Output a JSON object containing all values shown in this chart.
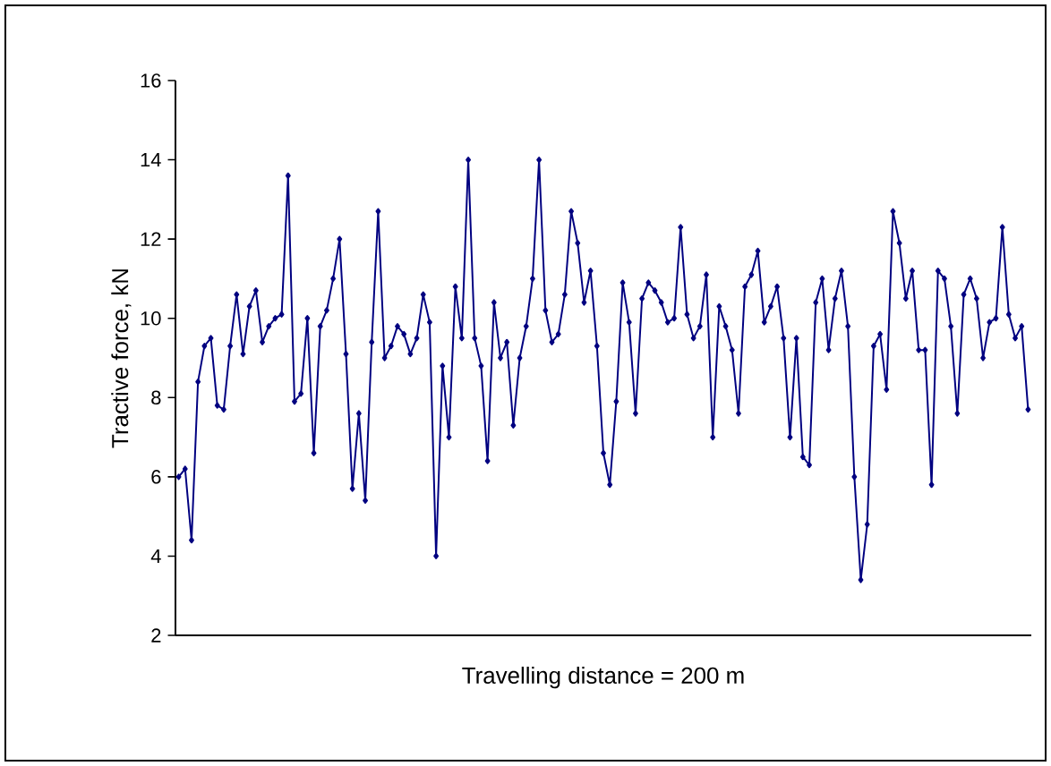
{
  "chart_data": {
    "type": "line",
    "xlabel": "Travelling distance = 200 m",
    "ylabel": "Tractive force, kN",
    "categories": [
      null,
      null,
      null,
      null,
      null,
      null,
      null,
      null,
      null,
      null,
      null,
      null,
      null,
      null,
      null,
      null,
      null,
      null,
      null,
      null,
      null,
      null,
      null,
      null,
      null,
      null,
      null,
      null,
      null,
      null,
      null,
      null,
      null,
      null,
      null,
      null,
      null,
      null,
      null,
      null,
      null,
      null,
      null,
      null,
      null,
      null,
      null,
      null,
      null,
      null,
      null,
      null,
      null,
      null,
      null,
      null,
      null,
      null,
      null,
      null,
      null,
      null,
      null,
      null,
      null,
      null,
      null,
      null,
      null,
      null,
      null,
      null,
      null,
      null,
      null,
      null,
      null,
      null,
      null,
      null,
      null,
      null,
      null,
      null,
      null,
      null,
      null,
      null,
      null,
      null,
      null,
      null,
      null,
      null,
      null,
      null,
      null,
      null,
      null,
      null,
      null,
      null,
      null,
      null,
      null,
      null,
      null,
      null,
      null,
      null,
      null,
      null,
      null,
      null,
      null,
      null,
      null,
      null,
      null,
      null,
      null,
      null,
      null,
      null,
      null,
      null,
      null,
      null,
      null,
      null,
      null,
      null,
      null
    ],
    "series": [
      {
        "color": "#000080",
        "values": [
          6.0,
          6.2,
          4.4,
          8.4,
          9.3,
          9.5,
          7.8,
          7.7,
          9.3,
          10.6,
          9.1,
          10.3,
          10.7,
          9.4,
          9.8,
          10.0,
          10.1,
          13.6,
          7.9,
          8.1,
          10.0,
          6.6,
          9.8,
          10.2,
          11.0,
          12.0,
          9.1,
          5.7,
          7.6,
          5.4,
          9.4,
          12.7,
          9.0,
          9.3,
          9.8,
          9.6,
          9.1,
          9.5,
          10.6,
          9.9,
          4.0,
          8.8,
          7.0,
          10.8,
          9.5,
          14.0,
          9.5,
          8.8,
          6.4,
          10.4,
          9.0,
          9.4,
          7.3,
          9.0,
          9.8,
          11.0,
          14.0,
          10.2,
          9.4,
          9.6,
          10.6,
          12.7,
          11.9,
          10.4,
          11.2,
          9.3,
          6.6,
          5.8,
          7.9,
          10.9,
          9.9,
          7.6,
          10.5,
          10.9,
          10.7,
          10.4,
          9.9,
          10.0,
          12.3,
          10.1,
          9.5,
          9.8,
          11.1,
          7.0,
          10.3,
          9.8,
          9.2,
          7.6,
          10.8,
          11.1,
          11.7,
          9.9,
          10.3,
          10.8,
          9.5,
          7.0,
          9.5,
          6.5,
          6.3,
          10.4,
          11.0,
          9.2,
          10.5,
          11.2,
          9.8,
          6.0,
          3.4,
          4.8,
          9.3,
          9.6,
          8.2,
          12.7,
          11.9,
          10.5,
          11.2,
          9.2,
          9.2,
          5.8,
          11.2,
          11.0,
          9.8,
          7.6,
          10.6,
          11.0,
          10.5,
          9.0,
          9.9,
          10.0,
          12.3,
          10.1,
          9.5,
          9.8,
          7.7
        ]
      }
    ],
    "ylim": [
      2,
      16
    ],
    "yticks": [
      2,
      4,
      6,
      8,
      10,
      12,
      14,
      16
    ],
    "grid": false,
    "marker": "diamond",
    "line_style": "solid"
  }
}
